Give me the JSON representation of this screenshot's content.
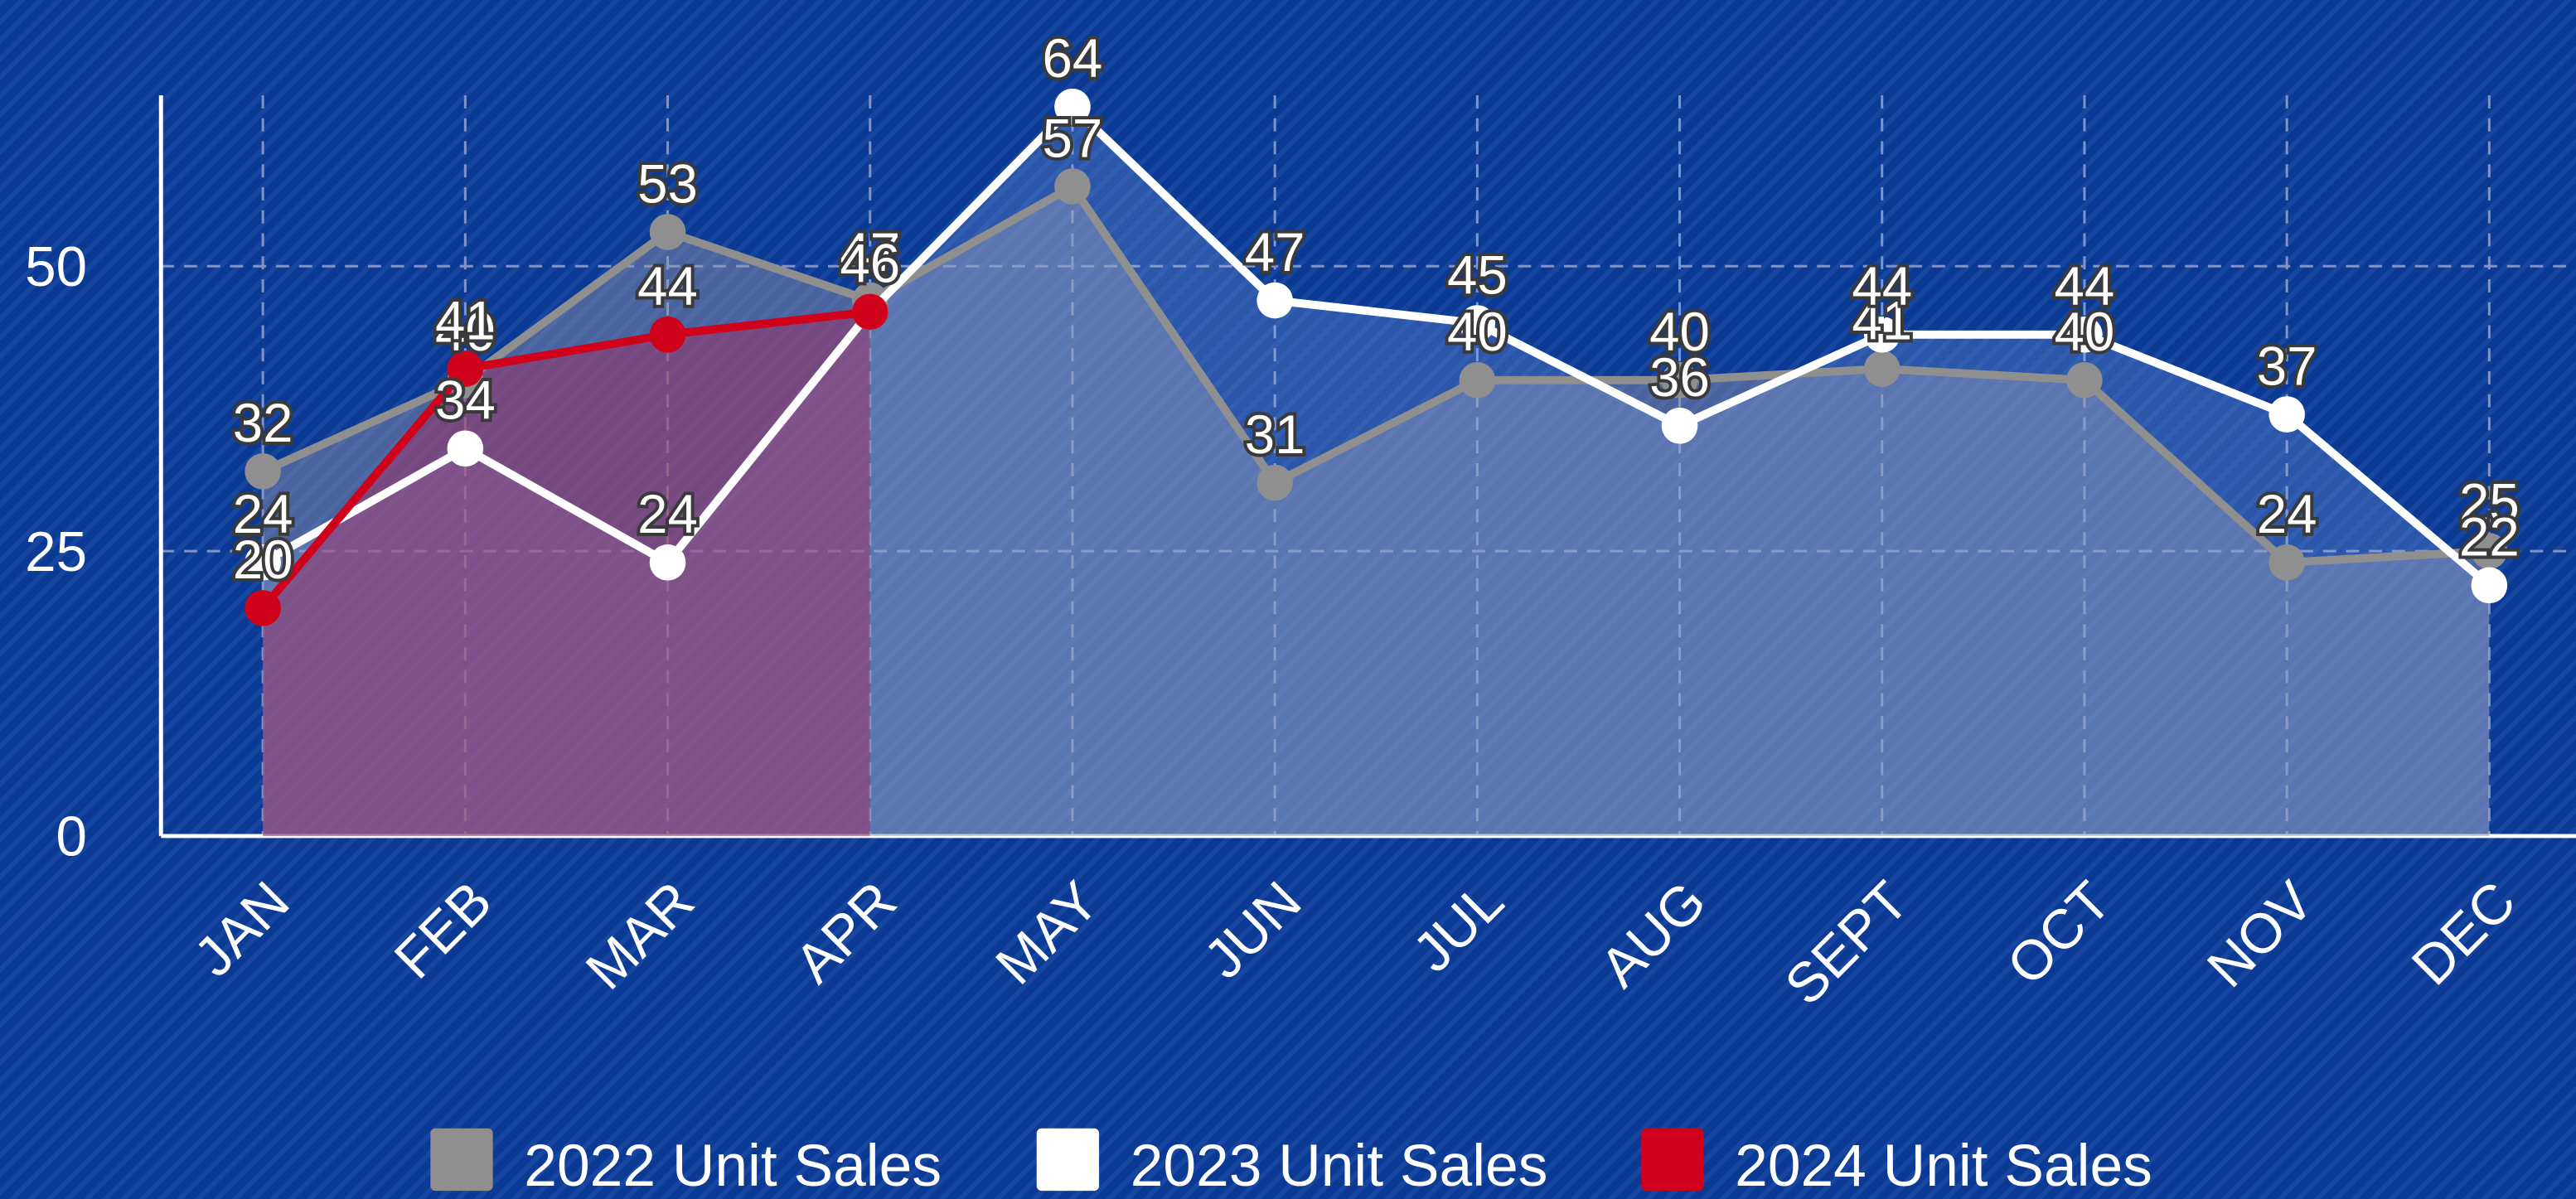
{
  "chart_data": {
    "type": "line",
    "categories": [
      "JAN",
      "FEB",
      "MAR",
      "APR",
      "MAY",
      "JUN",
      "JUL",
      "AUG",
      "SEPT",
      "OCT",
      "NOV",
      "DEC"
    ],
    "series": [
      {
        "name": "2022 Unit Sales",
        "color": "#8f8f8f",
        "values": [
          32,
          40,
          53,
          47,
          57,
          31,
          40,
          40,
          41,
          40,
          24,
          25
        ]
      },
      {
        "name": "2023 Unit Sales",
        "color": "#ffffff",
        "values": [
          24,
          34,
          24,
          46,
          64,
          47,
          45,
          36,
          44,
          44,
          37,
          22
        ]
      },
      {
        "name": "2024 Unit Sales",
        "color": "#d0021b",
        "values": [
          20,
          41,
          44,
          46,
          null,
          null,
          null,
          null,
          null,
          null,
          null,
          null
        ]
      }
    ],
    "ylim": [
      0,
      65
    ],
    "yticks": [
      0,
      25,
      50
    ],
    "grid": true,
    "legend": "bottom"
  }
}
